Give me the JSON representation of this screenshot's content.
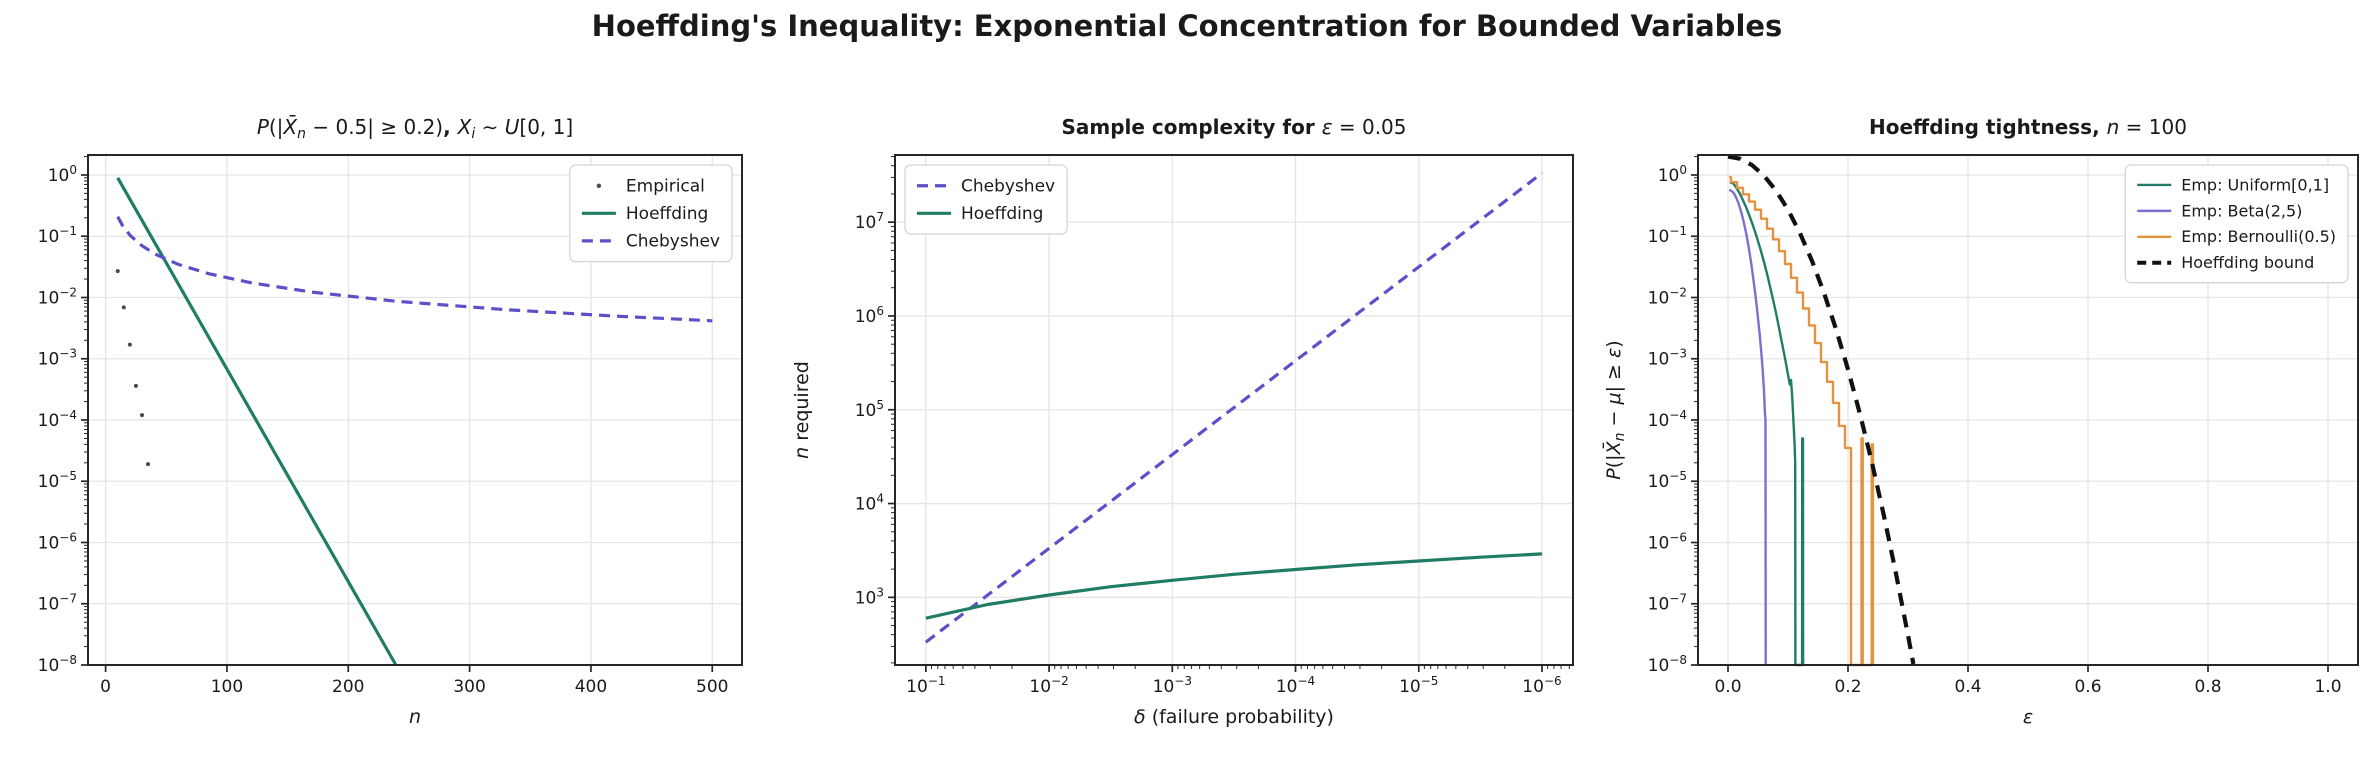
{
  "figure": {
    "title": "Hoeffding's Inequality: Exponential Concentration for Bounded Variables",
    "background": "#ffffff"
  },
  "colors": {
    "green": "#217c65",
    "purple": "#5b50c8",
    "light_purple": "#7d6fd0",
    "orange": "#e39240",
    "dot_gray": "#4a4a4a",
    "black": "#111111",
    "grid": "#e5e5e5",
    "spine": "#262626",
    "text": "#1a1a1a",
    "legend_border": "#d5d5d5"
  },
  "chart_data": [
    {
      "type": "line",
      "title_segments": [
        {
          "t": "P",
          "i": 1
        },
        {
          "t": "(|"
        },
        {
          "t": "X̄",
          "i": 1
        },
        {
          "t": "n",
          "i": 1,
          "sub": 1
        },
        {
          "t": " − 0.5| ≥ 0.2)"
        },
        {
          "t": ", ",
          "b": 1
        },
        {
          "t": "X",
          "i": 1
        },
        {
          "t": "i",
          "i": 1,
          "sub": 1
        },
        {
          "t": " ∼ "
        },
        {
          "t": "U",
          "i": 1
        },
        {
          "t": "[0, 1]"
        }
      ],
      "x_axis": {
        "scale": "linear",
        "min": -14.5,
        "max": 524.5,
        "ticks": [
          {
            "v": 0,
            "label": "0"
          },
          {
            "v": 100,
            "label": "100"
          },
          {
            "v": 200,
            "label": "200"
          },
          {
            "v": 300,
            "label": "300"
          },
          {
            "v": 400,
            "label": "400"
          },
          {
            "v": 500,
            "label": "500"
          }
        ],
        "label_segments": [
          {
            "t": "n",
            "i": 1
          }
        ]
      },
      "y_axis": {
        "scale": "log",
        "min": 1e-08,
        "max": 2.12,
        "minor": true,
        "tick_exps": [
          0,
          -1,
          -2,
          -3,
          -4,
          -5,
          -6,
          -7,
          -8
        ]
      },
      "legend": {
        "position": "top-right",
        "font": 17,
        "entries": [
          {
            "label": "Empirical",
            "marker": "dot",
            "color": "#4a4a4a"
          },
          {
            "label": "Hoeffding",
            "color": "#217c65",
            "lw": 3.2
          },
          {
            "label": "Chebyshev",
            "color": "#5b50c8",
            "lw": 3.2,
            "dash": "11 7"
          }
        ]
      },
      "series": [
        {
          "name": "empirical",
          "type": "scatter",
          "color": "#4a4a4a",
          "r": 2,
          "points": [
            [
              10,
              0.027
            ],
            [
              15,
              0.0069
            ],
            [
              20,
              0.0017
            ],
            [
              25,
              0.00036
            ],
            [
              30,
              0.00012
            ],
            [
              35,
              1.9e-05
            ]
          ]
        },
        {
          "name": "hoeffding",
          "type": "line",
          "color": "#217c65",
          "lw": 3.2,
          "points": [
            [
              10,
              0.899
            ],
            [
              239,
              1.02e-08
            ]
          ]
        },
        {
          "name": "chebyshev",
          "type": "line",
          "color": "#5b50c8",
          "lw": 3.2,
          "dash": "11 7",
          "points": [
            [
              10,
              0.2083
            ],
            [
              14,
              0.1488
            ],
            [
              20,
              0.1042
            ],
            [
              28,
              0.0744
            ],
            [
              40,
              0.0521
            ],
            [
              60,
              0.0347
            ],
            [
              85,
              0.0245
            ],
            [
              120,
              0.01736
            ],
            [
              170,
              0.01225
            ],
            [
              240,
              0.00868
            ],
            [
              330,
              0.00631
            ],
            [
              420,
              0.00496
            ],
            [
              500,
              0.00417
            ]
          ]
        }
      ]
    },
    {
      "type": "line",
      "title_segments": [
        {
          "t": "Sample complexity for ",
          "b": 1
        },
        {
          "t": "ε",
          "i": 1
        },
        {
          "t": " = 0.05"
        }
      ],
      "x_axis": {
        "scale": "log",
        "reversed": true,
        "min": 5.6e-07,
        "max": 0.178,
        "minor": true,
        "tick_exps": [
          -1,
          -2,
          -3,
          -4,
          -5,
          -6
        ],
        "label_segments": [
          {
            "t": "δ",
            "i": 1
          },
          {
            "t": " (failure probability)"
          }
        ]
      },
      "y_axis": {
        "scale": "log",
        "min": 190,
        "max": 52000000.0,
        "minor": true,
        "tick_exps": [
          7,
          6,
          5,
          4,
          3
        ],
        "label_segments": [
          {
            "t": "n",
            "i": 1
          },
          {
            "t": " required"
          }
        ]
      },
      "legend": {
        "position": "top-left",
        "font": 17,
        "entries": [
          {
            "label": "Chebyshev",
            "color": "#5b50c8",
            "lw": 3.2,
            "dash": "11 7"
          },
          {
            "label": "Hoeffding",
            "color": "#217c65",
            "lw": 3.2
          }
        ]
      },
      "series": [
        {
          "name": "chebyshev",
          "type": "line",
          "color": "#5b50c8",
          "lw": 3.2,
          "dash": "11 7",
          "points": [
            [
              0.1,
              333.3
            ],
            [
              1e-06,
              33330000
            ]
          ]
        },
        {
          "name": "hoeffding",
          "type": "line",
          "color": "#217c65",
          "lw": 3.2,
          "points": [
            [
              0.1,
              599
            ],
            [
              0.0316,
              840
            ],
            [
              0.01,
              1060
            ],
            [
              0.00316,
              1300
            ],
            [
              0.001,
              1520
            ],
            [
              0.000316,
              1761
            ],
            [
              0.0001,
              1981
            ],
            [
              3.16e-05,
              2222
            ],
            [
              1e-05,
              2441
            ],
            [
              3.16e-06,
              2682
            ],
            [
              1e-06,
              2902
            ]
          ]
        }
      ]
    },
    {
      "type": "line",
      "title_segments": [
        {
          "t": "Hoeffding tightness, ",
          "b": 1
        },
        {
          "t": "n",
          "i": 1
        },
        {
          "t": " = 100"
        }
      ],
      "x_axis": {
        "scale": "linear",
        "min": -0.05,
        "max": 1.05,
        "ticks": [
          {
            "v": 0,
            "label": "0.0"
          },
          {
            "v": 0.2,
            "label": "0.2"
          },
          {
            "v": 0.4,
            "label": "0.4"
          },
          {
            "v": 0.6,
            "label": "0.6"
          },
          {
            "v": 0.8,
            "label": "0.8"
          },
          {
            "v": 1.0,
            "label": "1.0"
          }
        ],
        "label_segments": [
          {
            "t": "ε",
            "i": 1
          }
        ]
      },
      "y_axis": {
        "scale": "log",
        "min": 1e-08,
        "max": 2.12,
        "minor": true,
        "tick_exps": [
          0,
          -1,
          -2,
          -3,
          -4,
          -5,
          -6,
          -7,
          -8
        ],
        "label_segments": [
          {
            "t": "P",
            "i": 1
          },
          {
            "t": "(|"
          },
          {
            "t": "X̄",
            "i": 1
          },
          {
            "t": "n",
            "i": 1,
            "sub": 1
          },
          {
            "t": " − "
          },
          {
            "t": "μ",
            "i": 1
          },
          {
            "t": "| ≥ "
          },
          {
            "t": "ε",
            "i": 1
          },
          {
            "t": ")"
          }
        ]
      },
      "legend": {
        "position": "top-right",
        "font": 16,
        "entries": [
          {
            "label": "Emp: Uniform[0,1]",
            "color": "#217c65",
            "lw": 2.4
          },
          {
            "label": "Emp: Beta(2,5)",
            "color": "#7d6fd0",
            "lw": 2.4
          },
          {
            "label": "Emp: Bernoulli(0.5)",
            "color": "#e39240",
            "lw": 2.4
          },
          {
            "label": "Hoeffding bound",
            "color": "#111111",
            "lw": 4,
            "dash": "9 6"
          }
        ]
      },
      "series": [
        {
          "name": "emp-uniform",
          "type": "line",
          "color": "#217c65",
          "lw": 2.4,
          "points": [
            [
              0.003,
              0.76
            ],
            [
              0.008,
              0.74
            ],
            [
              0.012,
              0.66
            ],
            [
              0.016,
              0.575
            ],
            [
              0.02,
              0.49
            ],
            [
              0.025,
              0.385
            ],
            [
              0.03,
              0.3
            ],
            [
              0.035,
              0.225
            ],
            [
              0.04,
              0.166
            ],
            [
              0.045,
              0.119
            ],
            [
              0.05,
              0.083
            ],
            [
              0.055,
              0.057
            ],
            [
              0.06,
              0.038
            ],
            [
              0.065,
              0.0245
            ],
            [
              0.07,
              0.0152
            ],
            [
              0.075,
              0.0093
            ],
            [
              0.08,
              0.0056
            ],
            [
              0.085,
              0.0032
            ],
            [
              0.09,
              0.0018
            ],
            [
              0.095,
              0.00102
            ],
            [
              0.1,
              0.00055
            ],
            [
              0.103,
              0.00038
            ],
            [
              0.105,
              0.00045
            ],
            [
              0.107,
              0.00024
            ],
            [
              0.109,
              0.0001
            ],
            [
              0.111,
              4e-05
            ],
            [
              0.112,
              2e-05
            ],
            [
              0.1123,
              1e-09
            ],
            [
              0.1235,
              1e-09
            ],
            [
              0.1237,
              5e-05
            ],
            [
              0.125,
              5e-05
            ],
            [
              0.1252,
              1e-09
            ]
          ]
        },
        {
          "name": "emp-beta",
          "type": "line",
          "color": "#7d6fd0",
          "lw": 2.4,
          "points": [
            [
              0.002,
              0.57
            ],
            [
              0.006,
              0.55
            ],
            [
              0.01,
              0.5
            ],
            [
              0.014,
              0.42
            ],
            [
              0.018,
              0.335
            ],
            [
              0.022,
              0.25
            ],
            [
              0.026,
              0.175
            ],
            [
              0.03,
              0.115
            ],
            [
              0.034,
              0.071
            ],
            [
              0.038,
              0.04
            ],
            [
              0.042,
              0.021
            ],
            [
              0.046,
              0.0105
            ],
            [
              0.05,
              0.0046
            ],
            [
              0.053,
              0.0024
            ],
            [
              0.056,
              0.0011
            ],
            [
              0.058,
              0.00062
            ],
            [
              0.06,
              0.0003
            ],
            [
              0.0615,
              0.00013
            ],
            [
              0.0625,
              0.0001
            ],
            [
              0.0628,
              1e-09
            ]
          ]
        },
        {
          "name": "emp-bernoulli",
          "type": "line",
          "color": "#e39240",
          "lw": 2.4,
          "points": [
            [
              0.002,
              0.92
            ],
            [
              0.005,
              0.92
            ],
            [
              0.005,
              0.764
            ],
            [
              0.015,
              0.764
            ],
            [
              0.015,
              0.617
            ],
            [
              0.025,
              0.617
            ],
            [
              0.025,
              0.484
            ],
            [
              0.035,
              0.484
            ],
            [
              0.035,
              0.368
            ],
            [
              0.045,
              0.368
            ],
            [
              0.045,
              0.271
            ],
            [
              0.055,
              0.271
            ],
            [
              0.055,
              0.193
            ],
            [
              0.065,
              0.193
            ],
            [
              0.065,
              0.133
            ],
            [
              0.075,
              0.133
            ],
            [
              0.075,
              0.089
            ],
            [
              0.085,
              0.089
            ],
            [
              0.085,
              0.057
            ],
            [
              0.095,
              0.057
            ],
            [
              0.095,
              0.0352
            ],
            [
              0.105,
              0.0352
            ],
            [
              0.105,
              0.021
            ],
            [
              0.115,
              0.021
            ],
            [
              0.115,
              0.012
            ],
            [
              0.125,
              0.012
            ],
            [
              0.125,
              0.0066
            ],
            [
              0.135,
              0.0066
            ],
            [
              0.135,
              0.0035
            ],
            [
              0.145,
              0.0035
            ],
            [
              0.145,
              0.0018
            ],
            [
              0.155,
              0.0018
            ],
            [
              0.155,
              0.00088
            ],
            [
              0.165,
              0.00088
            ],
            [
              0.165,
              0.00042
            ],
            [
              0.175,
              0.00042
            ],
            [
              0.175,
              0.00019
            ],
            [
              0.185,
              0.00019
            ],
            [
              0.185,
              8e-05
            ],
            [
              0.195,
              8e-05
            ],
            [
              0.195,
              3.5e-05
            ],
            [
              0.205,
              3.5e-05
            ],
            [
              0.205,
              1e-09
            ],
            [
              0.2225,
              1e-09
            ],
            [
              0.2225,
              5e-05
            ],
            [
              0.2245,
              5e-05
            ],
            [
              0.2245,
              1e-09
            ],
            [
              0.2395,
              1e-09
            ],
            [
              0.2395,
              4e-05
            ],
            [
              0.2415,
              4e-05
            ],
            [
              0.2415,
              1e-09
            ]
          ]
        },
        {
          "name": "hoeffding-bound",
          "type": "line",
          "color": "#111111",
          "lw": 4.2,
          "dash": "13 9",
          "points": [
            [
              0,
              2.0
            ],
            [
              0.02,
              1.847
            ],
            [
              0.04,
              1.452
            ],
            [
              0.06,
              0.975
            ],
            [
              0.08,
              0.557
            ],
            [
              0.1,
              0.271
            ],
            [
              0.12,
              0.112
            ],
            [
              0.14,
              0.0396
            ],
            [
              0.16,
              0.0119
            ],
            [
              0.18,
              0.00305
            ],
            [
              0.2,
              0.000671
            ],
            [
              0.22,
              0.000125
            ],
            [
              0.24,
              2e-05
            ],
            [
              0.26,
              2.7e-06
            ],
            [
              0.28,
              3.1e-07
            ],
            [
              0.3,
              3.06e-08
            ],
            [
              0.309,
              1.04e-08
            ]
          ]
        }
      ]
    }
  ]
}
